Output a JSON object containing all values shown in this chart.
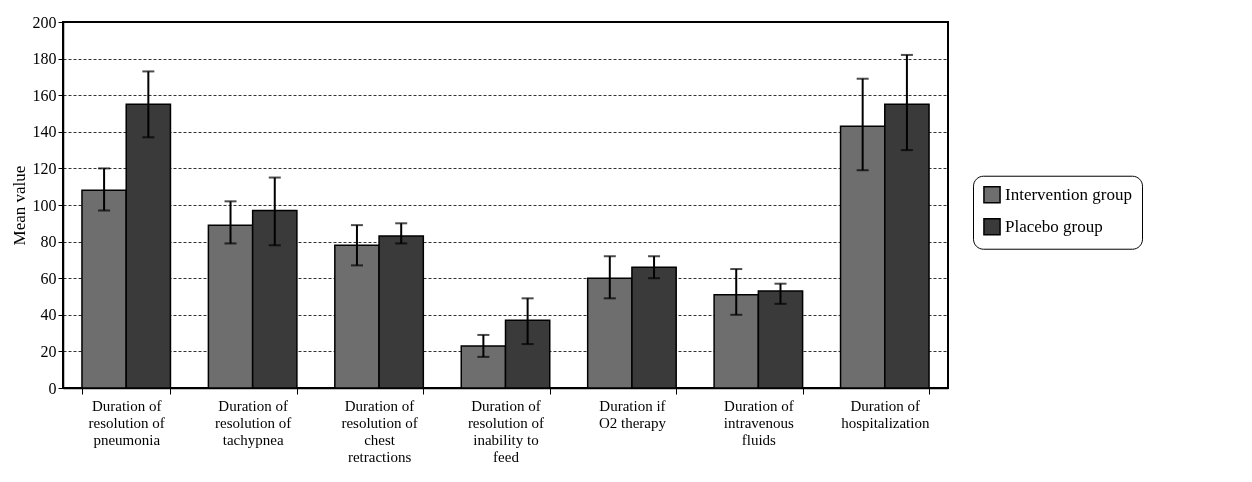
{
  "chart_data": {
    "type": "bar",
    "ylabel": "Mean value",
    "categories": [
      "Duration of resolution of pneumonia",
      "Duration of resolution of tachypnea",
      "Duration of resolution of chest retractions",
      "Duration of resolution of inability to feed",
      "Duration if O2 therapy",
      "Duration of intravenous fluids",
      "Duration of hospitalization"
    ],
    "series": [
      {
        "name": "Intervention group",
        "color": "#6e6e6e",
        "values": [
          108,
          89,
          78,
          23,
          60,
          51,
          143
        ],
        "errors": [
          [
            97,
            120
          ],
          [
            79,
            102
          ],
          [
            67,
            89
          ],
          [
            17,
            29
          ],
          [
            49,
            72
          ],
          [
            40,
            65
          ],
          [
            119,
            169
          ]
        ]
      },
      {
        "name": "Placebo group",
        "color": "#3a3a3a",
        "values": [
          155,
          97,
          83,
          37,
          66,
          53,
          155
        ],
        "errors": [
          [
            137,
            173
          ],
          [
            78,
            115
          ],
          [
            79,
            90
          ],
          [
            24,
            49
          ],
          [
            60,
            72
          ],
          [
            46,
            57
          ],
          [
            130,
            182
          ]
        ]
      }
    ],
    "ylim": [
      0,
      200
    ],
    "yticks": [
      0,
      20,
      40,
      60,
      80,
      100,
      120,
      140,
      160,
      180,
      200
    ],
    "grid": "y",
    "legend": "right"
  }
}
